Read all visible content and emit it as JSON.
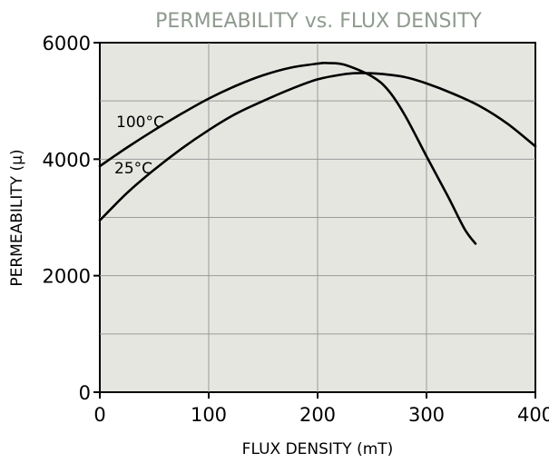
{
  "chart_data": {
    "type": "line",
    "title": "PERMEABILITY vs. FLUX DENSITY",
    "xlabel": "FLUX DENSITY (mT)",
    "ylabel": "PERMEABILITY (µ)",
    "xlim": [
      0,
      400
    ],
    "ylim": [
      0,
      6000
    ],
    "xticks": [
      0,
      100,
      200,
      300,
      400
    ],
    "yticks": [
      0,
      2000,
      4000,
      6000
    ],
    "grid": true,
    "series": [
      {
        "name": "100°C",
        "x": [
          0,
          25,
          50,
          75,
          100,
          125,
          150,
          175,
          200,
          210,
          225,
          250,
          265,
          280,
          300,
          320,
          335,
          345
        ],
        "y": [
          3880,
          4200,
          4500,
          4780,
          5040,
          5260,
          5440,
          5570,
          5640,
          5650,
          5620,
          5420,
          5180,
          4760,
          4050,
          3350,
          2800,
          2550
        ]
      },
      {
        "name": "25°C",
        "x": [
          0,
          25,
          50,
          75,
          100,
          125,
          150,
          175,
          200,
          225,
          240,
          260,
          280,
          300,
          325,
          350,
          375,
          400
        ],
        "y": [
          2950,
          3420,
          3820,
          4180,
          4500,
          4780,
          5000,
          5200,
          5370,
          5460,
          5480,
          5460,
          5410,
          5300,
          5120,
          4900,
          4600,
          4220
        ]
      }
    ]
  }
}
